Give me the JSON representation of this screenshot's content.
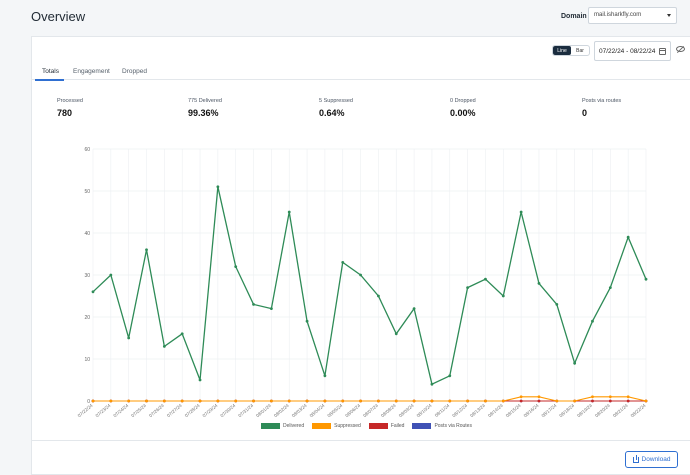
{
  "header": {
    "title": "Overview",
    "domain_label": "Domain",
    "domain_value": "mail.isharkfly.com"
  },
  "controls": {
    "view_line": "Line",
    "view_bar": "Bar",
    "date_range": "07/22/24 - 08/22/24"
  },
  "tabs": [
    {
      "label": "Totals",
      "active": true
    },
    {
      "label": "Engagement",
      "active": false
    },
    {
      "label": "Dropped",
      "active": false
    }
  ],
  "stats": [
    {
      "label": "Processed",
      "value": "780"
    },
    {
      "label": "775 Delivered",
      "value": "99.36%"
    },
    {
      "label": "5 Suppressed",
      "value": "0.64%"
    },
    {
      "label": "0 Dropped",
      "value": "0.00%"
    },
    {
      "label": "Posts via routes",
      "value": "0"
    }
  ],
  "chart_data": {
    "type": "line",
    "x": [
      "07/22/24",
      "07/23/24",
      "07/24/24",
      "07/25/24",
      "07/26/24",
      "07/27/24",
      "07/28/24",
      "07/29/24",
      "07/30/24",
      "07/31/24",
      "08/01/24",
      "08/02/24",
      "08/03/24",
      "08/04/24",
      "08/05/24",
      "08/06/24",
      "08/07/24",
      "08/08/24",
      "08/09/24",
      "08/10/24",
      "08/11/24",
      "08/12/24",
      "08/13/24",
      "08/14/24",
      "08/15/24",
      "08/16/24",
      "08/17/24",
      "08/18/24",
      "08/19/24",
      "08/20/24",
      "08/21/24",
      "08/22/24"
    ],
    "series": [
      {
        "name": "Delivered",
        "color": "#2e8b57",
        "values": [
          26,
          30,
          15,
          36,
          13,
          16,
          5,
          51,
          32,
          23,
          22,
          45,
          19,
          6,
          33,
          30,
          25,
          16,
          22,
          4,
          6,
          27,
          29,
          25,
          45,
          28,
          23,
          9,
          19,
          27,
          39,
          29
        ]
      },
      {
        "name": "Suppressed",
        "color": "#ff9800",
        "values": [
          0,
          0,
          0,
          0,
          0,
          0,
          0,
          0,
          0,
          0,
          0,
          0,
          0,
          0,
          0,
          0,
          0,
          0,
          0,
          0,
          0,
          0,
          0,
          0,
          1,
          1,
          0,
          0,
          1,
          1,
          1,
          0
        ]
      },
      {
        "name": "Failed",
        "color": "#c62828",
        "values": [
          0,
          0,
          0,
          0,
          0,
          0,
          0,
          0,
          0,
          0,
          0,
          0,
          0,
          0,
          0,
          0,
          0,
          0,
          0,
          0,
          0,
          0,
          0,
          0,
          0,
          0,
          0,
          0,
          0,
          0,
          0,
          0
        ]
      },
      {
        "name": "Posts via Routes",
        "color": "#3f51b5",
        "values": [
          0,
          0,
          0,
          0,
          0,
          0,
          0,
          0,
          0,
          0,
          0,
          0,
          0,
          0,
          0,
          0,
          0,
          0,
          0,
          0,
          0,
          0,
          0,
          0,
          0,
          0,
          0,
          0,
          0,
          0,
          0,
          0
        ]
      }
    ],
    "y_ticks": [
      "0",
      "10",
      "20",
      "30",
      "40",
      "50",
      "60"
    ],
    "ylim": [
      0,
      60
    ],
    "grid": true,
    "legend": "bottom-center"
  },
  "footer": {
    "download_label": "Download"
  }
}
